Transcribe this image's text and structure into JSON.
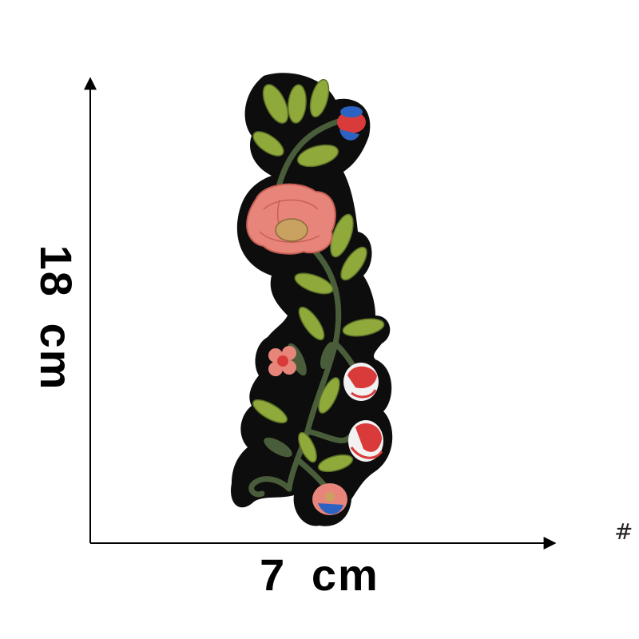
{
  "dimensions": {
    "width_label": "7  cm",
    "height_label": "18  cm"
  },
  "corner_mark": "#",
  "product": {
    "description_icon": "embroidered-flower-patch",
    "colors": {
      "patch_border": "#0d0d0d",
      "leaf": "#8faa3a",
      "stem": "#4a5d3a",
      "peony": "#e8857a",
      "peony_center": "#c9a160",
      "flower_red": "#d93a3a",
      "flower_white": "#f2f2f2",
      "flower_blue": "#2c63c2"
    }
  }
}
